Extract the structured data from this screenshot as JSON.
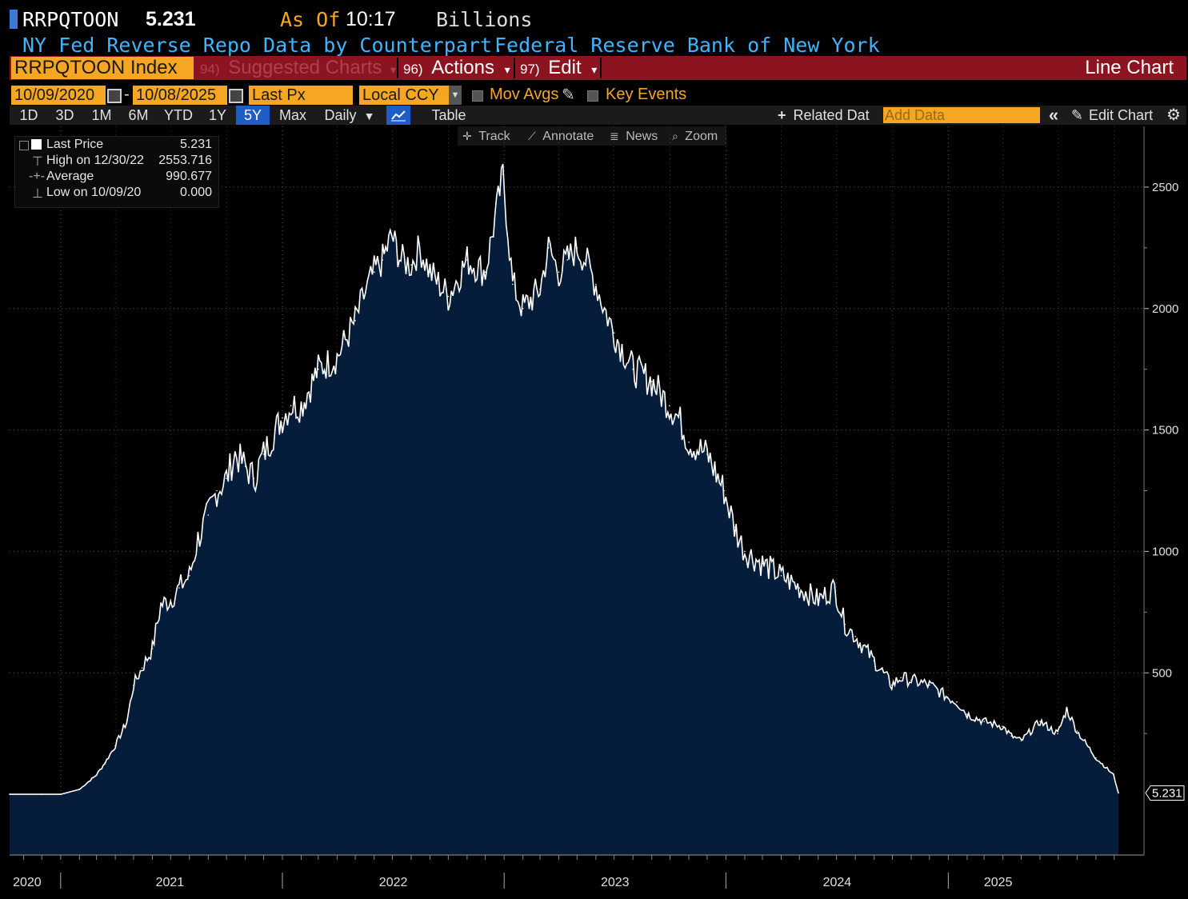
{
  "header": {
    "ticker": "RRPQTOON",
    "last_value": "5.231",
    "as_of_label": "As Of",
    "as_of_time": "10:17",
    "units": "Billions",
    "description": "NY Fed Reverse Repo Data by Counterpart...",
    "source": "Federal Reserve Bank of New York"
  },
  "toolbar": {
    "index_label": "RRPQTOON Index",
    "suggested_num": "94)",
    "suggested_label": "Suggested Charts",
    "actions_num": "96)",
    "actions_label": "Actions",
    "edit_num": "97)",
    "edit_label": "Edit",
    "chart_type_label": "Line Chart",
    "dropdown_arrow": "▾"
  },
  "controls": {
    "start_date": "10/09/2020",
    "date_sep": "-",
    "end_date": "10/08/2025",
    "price_field": "Last Px",
    "currency": "Local CCY",
    "mov_avgs": "Mov Avgs",
    "key_events": "Key Events",
    "periods": [
      "1D",
      "3D",
      "1M",
      "6M",
      "YTD",
      "1Y",
      "5Y",
      "Max"
    ],
    "frequency": "Daily",
    "frequency_arrow": "▼",
    "table_label": "Table",
    "related_data": "Related Dat",
    "add_data_placeholder": "Add Data",
    "collapse_glyph": "«",
    "edit_chart": "Edit Chart",
    "plus_glyph": "+",
    "pencil_glyph": "✎",
    "gear_glyph": "⚙"
  },
  "chart_tools": {
    "track": "Track",
    "annotate": "Annotate",
    "news": "News",
    "zoom": "Zoom"
  },
  "legend": {
    "last_price_label": "Last Price",
    "last_price_value": "5.231",
    "high_label": "High on 12/30/22",
    "high_value": "2553.716",
    "average_label": "Average",
    "average_value": "990.677",
    "low_label": "Low on 10/09/20",
    "low_value": "0.000"
  },
  "colors": {
    "background": "#000000",
    "fill": "#051d3a",
    "line": "#ffffff",
    "accent_orange": "#f5a623",
    "toolbar_red": "#8b1420",
    "header_blue": "#3fb5ff"
  },
  "chart_data": {
    "type": "area",
    "title": "",
    "xlabel": "",
    "ylabel": "",
    "x_ticks": [
      "2020",
      "2021",
      "2022",
      "2023",
      "2024",
      "2025"
    ],
    "y_ticks": [
      500,
      1000,
      1500,
      2000,
      2500
    ],
    "ylim": [
      -250,
      2750
    ],
    "x_range": [
      "2020-10-09",
      "2025-10-08"
    ],
    "grid": true,
    "last_value_label": "5.231",
    "series": [
      {
        "x": [
          "2020-10-09",
          "2020-12-01",
          "2021-01-01",
          "2021-02-01",
          "2021-03-01",
          "2021-03-15",
          "2021-04-01",
          "2021-04-20",
          "2021-05-01",
          "2021-05-15",
          "2021-06-01",
          "2021-06-15",
          "2021-07-01",
          "2021-07-15",
          "2021-08-01",
          "2021-08-15",
          "2021-09-01",
          "2021-09-15",
          "2021-10-01",
          "2021-10-15",
          "2021-11-01",
          "2021-11-15",
          "2021-12-01",
          "2021-12-20",
          "2022-01-01",
          "2022-01-15",
          "2022-02-01",
          "2022-03-01",
          "2022-04-01",
          "2022-05-01",
          "2022-05-15",
          "2022-06-01",
          "2022-06-15",
          "2022-06-30",
          "2022-07-15",
          "2022-08-01",
          "2022-08-15",
          "2022-09-01",
          "2022-10-01",
          "2022-11-01",
          "2022-12-01",
          "2022-12-30",
          "2023-01-15",
          "2023-02-01",
          "2023-03-01",
          "2023-03-15",
          "2023-04-01",
          "2023-04-15",
          "2023-05-01",
          "2023-05-15",
          "2023-06-01",
          "2023-06-15",
          "2023-07-01",
          "2023-08-01",
          "2023-09-01",
          "2023-09-30",
          "2023-10-15",
          "2023-11-01",
          "2023-12-01",
          "2023-12-29",
          "2024-01-15",
          "2024-02-01",
          "2024-03-01",
          "2024-04-01",
          "2024-05-01",
          "2024-06-01",
          "2024-06-28",
          "2024-07-15",
          "2024-08-01",
          "2024-09-01",
          "2024-09-30",
          "2024-10-15",
          "2024-11-01",
          "2024-12-01",
          "2024-12-31",
          "2025-01-15",
          "2025-02-01",
          "2025-03-01",
          "2025-03-31",
          "2025-04-15",
          "2025-05-01",
          "2025-06-01",
          "2025-06-30",
          "2025-07-15",
          "2025-08-01",
          "2025-09-01",
          "2025-09-30",
          "2025-10-08"
        ],
        "values": [
          0,
          0,
          0,
          20,
          80,
          130,
          200,
          300,
          450,
          520,
          600,
          780,
          800,
          850,
          900,
          1050,
          1150,
          1250,
          1300,
          1400,
          1350,
          1300,
          1400,
          1500,
          1550,
          1600,
          1600,
          1750,
          1800,
          1950,
          2050,
          2150,
          2200,
          2300,
          2200,
          2180,
          2250,
          2150,
          2050,
          2200,
          2150,
          2553,
          2100,
          2000,
          2080,
          2250,
          2150,
          2200,
          2250,
          2200,
          2100,
          2000,
          1900,
          1750,
          1700,
          1600,
          1550,
          1450,
          1400,
          1250,
          1100,
          1000,
          950,
          900,
          850,
          800,
          850,
          700,
          650,
          550,
          450,
          480,
          470,
          450,
          400,
          380,
          330,
          300,
          280,
          240,
          220,
          300,
          250,
          350,
          260,
          150,
          80,
          5.231
        ]
      }
    ]
  }
}
